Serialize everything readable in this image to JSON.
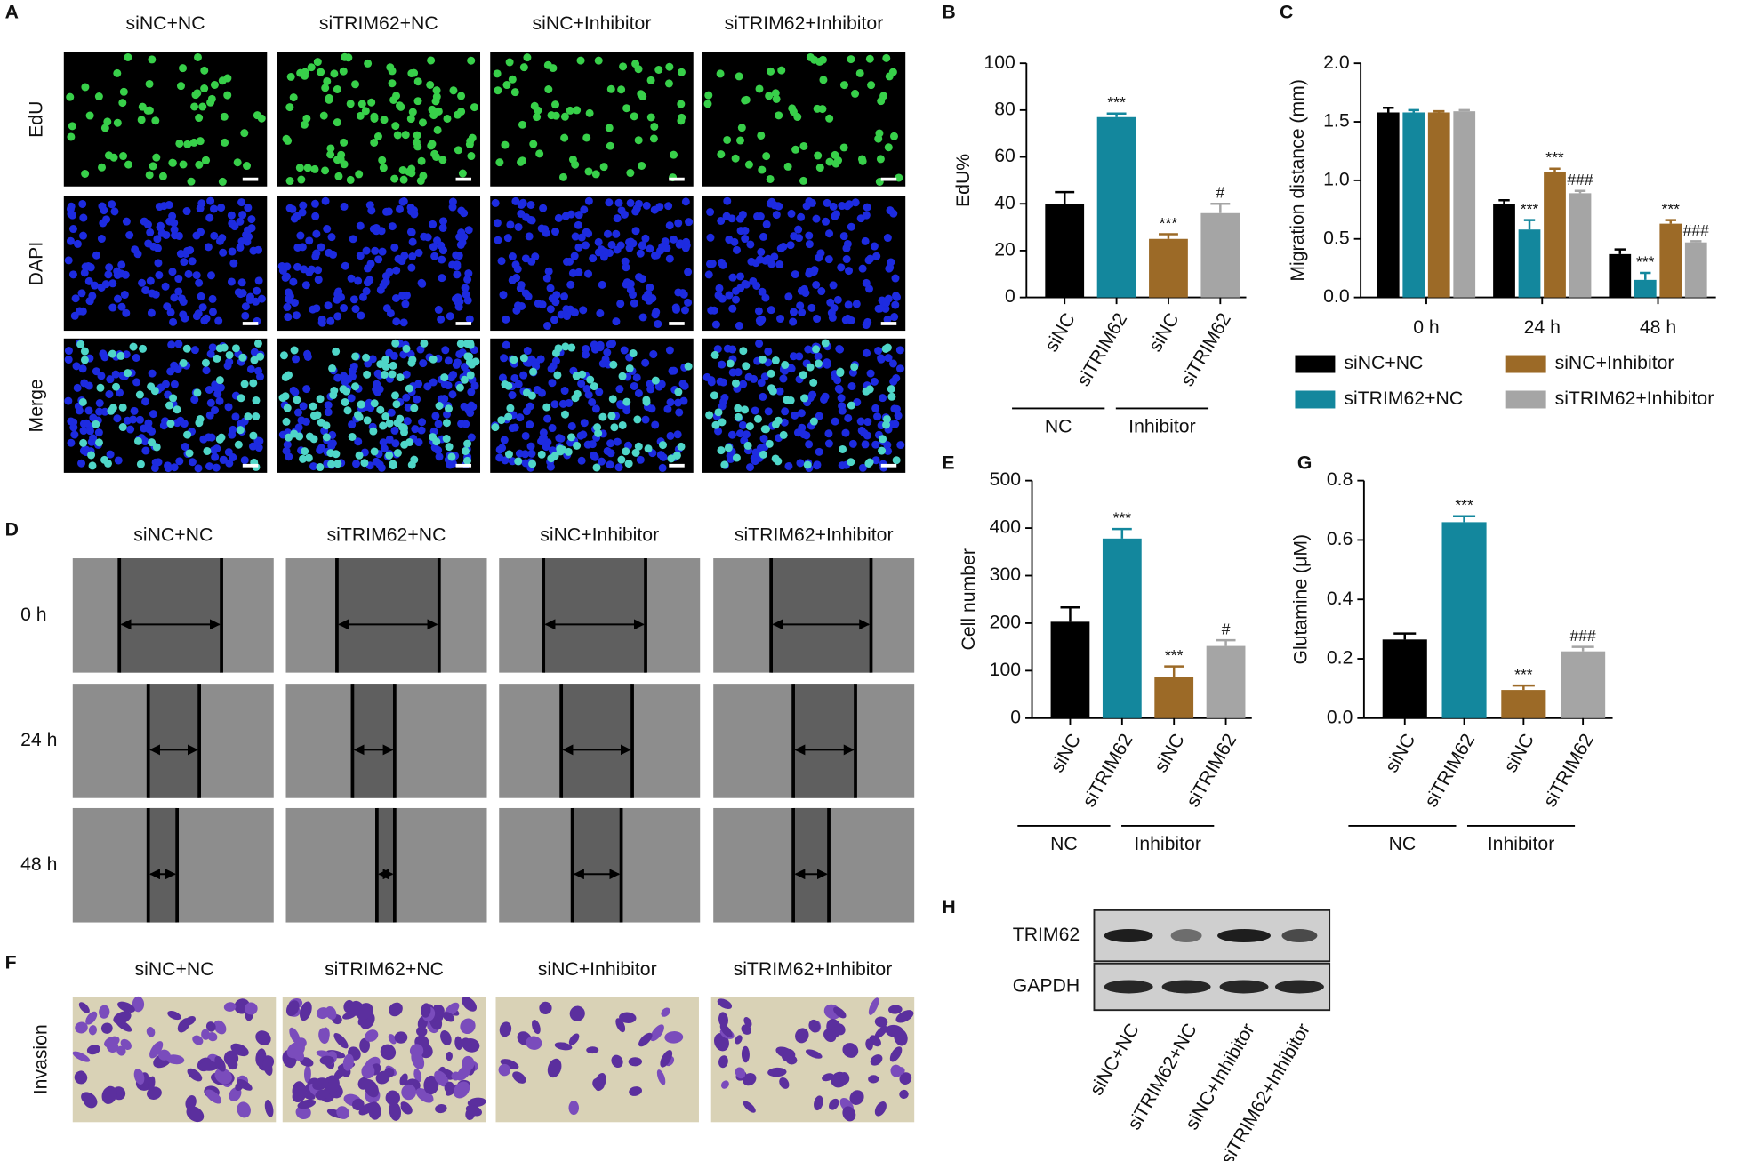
{
  "chart_data": [
    {
      "type": "bar",
      "label": "B",
      "ylabel": "EdU%",
      "categories": [
        "siNC",
        "siTRIM62",
        "siNC",
        "siTRIM62"
      ],
      "groups": [
        "NC",
        "Inhibitor"
      ],
      "values": [
        40,
        77,
        25,
        36
      ],
      "errors": [
        5,
        1.5,
        2,
        4
      ],
      "colors": [
        "#000000",
        "#13879d",
        "#9c6a27",
        "#a5a5a5"
      ],
      "annotations": [
        null,
        "***",
        "***",
        "#"
      ],
      "ylim": [
        0,
        100
      ],
      "yticks": [
        0,
        20,
        40,
        60,
        80,
        100
      ]
    },
    {
      "type": "grouped-bar",
      "label": "C",
      "ylabel": "Migration distance (mm)",
      "categories": [
        "0 h",
        "24 h",
        "48 h"
      ],
      "legend": "bottom",
      "series": [
        {
          "name": "siNC+NC",
          "color": "#000000",
          "values": [
            1.58,
            0.8,
            0.37
          ],
          "errors": [
            0.04,
            0.03,
            0.04
          ],
          "annotations": [
            null,
            null,
            null
          ]
        },
        {
          "name": "siTRIM62+NC",
          "color": "#13879d",
          "values": [
            1.58,
            0.58,
            0.15
          ],
          "errors": [
            0.02,
            0.08,
            0.06
          ],
          "annotations": [
            null,
            "***",
            "***"
          ]
        },
        {
          "name": "siNC+Inhibitor",
          "color": "#9c6a27",
          "values": [
            1.58,
            1.07,
            0.63
          ],
          "errors": [
            0.01,
            0.03,
            0.03
          ],
          "annotations": [
            null,
            "***",
            "***"
          ]
        },
        {
          "name": "siTRIM62+Inhibitor",
          "color": "#a5a5a5",
          "values": [
            1.59,
            0.89,
            0.47
          ],
          "errors": [
            0.01,
            0.02,
            0.01
          ],
          "annotations": [
            null,
            "###",
            "###"
          ]
        }
      ],
      "ylim": [
        0,
        2
      ],
      "yticks": [
        {
          "value": 0,
          "label": "0.0"
        },
        0.5,
        {
          "value": 1,
          "label": "1.0"
        },
        1.5,
        {
          "value": 2,
          "label": "2.0"
        }
      ]
    },
    {
      "type": "bar",
      "label": "E",
      "ylabel": "Cell number",
      "categories": [
        "siNC",
        "siTRIM62",
        "siNC",
        "siTRIM62"
      ],
      "groups": [
        "NC",
        "Inhibitor"
      ],
      "values": [
        203,
        378,
        87,
        152
      ],
      "errors": [
        30,
        20,
        22,
        12
      ],
      "colors": [
        "#000000",
        "#13879d",
        "#9c6a27",
        "#a5a5a5"
      ],
      "annotations": [
        null,
        "***",
        "***",
        "#"
      ],
      "ylim": [
        0,
        500
      ],
      "yticks": [
        0,
        100,
        200,
        300,
        400,
        500
      ]
    },
    {
      "type": "bar",
      "label": "G",
      "ylabel": "Glutamine (μM)",
      "categories": [
        "siNC",
        "siTRIM62",
        "siNC",
        "siTRIM62"
      ],
      "groups": [
        "NC",
        "Inhibitor"
      ],
      "values": [
        0.265,
        0.66,
        0.095,
        0.225
      ],
      "errors": [
        0.02,
        0.02,
        0.015,
        0.015
      ],
      "colors": [
        "#000000",
        "#13879d",
        "#9c6a27",
        "#a5a5a5"
      ],
      "annotations": [
        null,
        "***",
        "***",
        "###"
      ],
      "ylim": [
        0,
        0.8
      ],
      "yticks": [
        {
          "value": 0,
          "label": "0.0"
        },
        0.2,
        0.4,
        0.6,
        0.8
      ]
    }
  ],
  "image_panels": {
    "panel_a": {
      "letter": "A",
      "columns": [
        "siNC+NC",
        "siTRIM62+NC",
        "siNC+Inhibitor",
        "siTRIM62+Inhibitor"
      ],
      "rows": [
        "EdU",
        "DAPI",
        "Merge"
      ]
    },
    "panel_d": {
      "letter": "D",
      "columns": [
        "siNC+NC",
        "siTRIM62+NC",
        "siNC+Inhibitor",
        "siTRIM62+Inhibitor"
      ],
      "rows": [
        "0 h",
        "24 h",
        "48 h"
      ]
    },
    "panel_f": {
      "letter": "F",
      "columns": [
        "siNC+NC",
        "siTRIM62+NC",
        "siNC+Inhibitor",
        "siTRIM62+Inhibitor"
      ],
      "rows": [
        "Invasion"
      ]
    },
    "panel_h": {
      "letter": "H",
      "rows": [
        "TRIM62",
        "GAPDH"
      ],
      "lanes": [
        "siNC+NC",
        "siTRIM62+NC",
        "siNC+Inhibitor",
        "siTRIM62+Inhibitor"
      ]
    }
  }
}
